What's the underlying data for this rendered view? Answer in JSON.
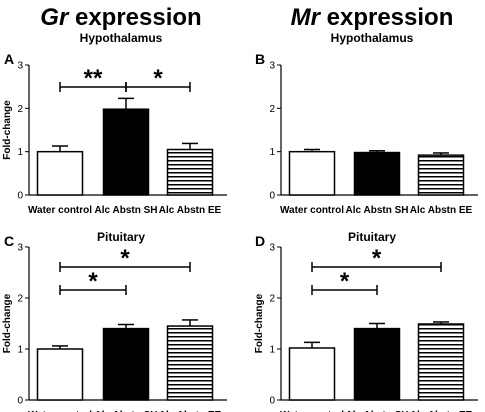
{
  "columns": [
    {
      "gene": "Gr",
      "suffix": " expression"
    },
    {
      "gene": "Mr",
      "suffix": " expression"
    }
  ],
  "chart_data": [
    {
      "type": "bar",
      "panel": "A",
      "title": "Hypothalamus",
      "ylabel": "Fold-change",
      "ylim": [
        0,
        3
      ],
      "yticks": [
        0,
        1,
        2,
        3
      ],
      "categories": [
        "Water control",
        "Alc Abstn SH",
        "Alc Abstn EE"
      ],
      "values": [
        1.0,
        1.98,
        1.05
      ],
      "errors": [
        0.13,
        0.25,
        0.14
      ],
      "fills": [
        "white",
        "black",
        "stripes"
      ],
      "significance": [
        {
          "from": 0,
          "to": 1,
          "label": "**"
        },
        {
          "from": 1,
          "to": 2,
          "label": "*"
        }
      ]
    },
    {
      "type": "bar",
      "panel": "B",
      "title": "Hypothalamus",
      "ylabel": "",
      "ylim": [
        0,
        3
      ],
      "yticks": [
        0,
        1,
        2,
        3
      ],
      "categories": [
        "Water control",
        "Alc Abstn SH",
        "Alc Abstn EE"
      ],
      "values": [
        1.0,
        0.98,
        0.92
      ],
      "errors": [
        0.05,
        0.04,
        0.05
      ],
      "fills": [
        "white",
        "black",
        "stripes"
      ],
      "significance": []
    },
    {
      "type": "bar",
      "panel": "C",
      "title": "Pituitary",
      "ylabel": "Fold-change",
      "ylim": [
        0,
        3
      ],
      "yticks": [
        0,
        1,
        2,
        3
      ],
      "categories": [
        "Water control",
        "Alc Abstn SH",
        "Alc Abstn EE"
      ],
      "values": [
        1.0,
        1.4,
        1.45
      ],
      "errors": [
        0.06,
        0.08,
        0.12
      ],
      "fills": [
        "white",
        "black",
        "stripes"
      ],
      "significance": [
        {
          "from": 0,
          "to": 1,
          "label": "*"
        },
        {
          "from": 0,
          "to": 2,
          "label": "*"
        }
      ]
    },
    {
      "type": "bar",
      "panel": "D",
      "title": "Pituitary",
      "ylabel": "Fold-change",
      "ylim": [
        0,
        3
      ],
      "yticks": [
        0,
        1,
        2,
        3
      ],
      "categories": [
        "Water control",
        "Alc Abstn SH",
        "Alc Abstn EE"
      ],
      "values": [
        1.02,
        1.4,
        1.49
      ],
      "errors": [
        0.11,
        0.1,
        0.04
      ],
      "fills": [
        "white",
        "black",
        "stripes"
      ],
      "significance": [
        {
          "from": 0,
          "to": 1,
          "label": "*"
        },
        {
          "from": 0,
          "to": 2,
          "label": "*"
        }
      ]
    }
  ]
}
